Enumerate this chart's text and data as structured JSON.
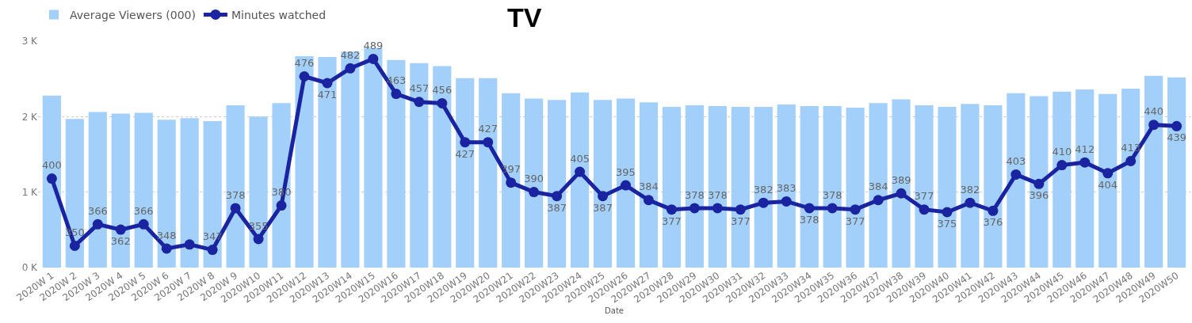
{
  "chart_data": {
    "type": "bar",
    "title": "TV",
    "xlabel": "Date",
    "categories": [
      "2020W 1",
      "2020W 2",
      "2020W 3",
      "2020W 4",
      "2020W 5",
      "2020W 6",
      "2020W 7",
      "2020W 8",
      "2020W 9",
      "2020W10",
      "2020W11",
      "2020W12",
      "2020W13",
      "2020W14",
      "2020W15",
      "2020W16",
      "2020W17",
      "2020W18",
      "2020W19",
      "2020W20",
      "2020W21",
      "2020W22",
      "2020W23",
      "2020W24",
      "2020W25",
      "2020W26",
      "2020W27",
      "2020W28",
      "2020W29",
      "2020W30",
      "2020W31",
      "2020W32",
      "2020W33",
      "2020W34",
      "2020W35",
      "2020W36",
      "2020W37",
      "2020W38",
      "2020W39",
      "2020W40",
      "2020W41",
      "2020W42",
      "2020W43",
      "2020W44",
      "2020W45",
      "2020W46",
      "2020W47",
      "2020W48",
      "2020W49",
      "2020W50"
    ],
    "series": [
      {
        "name": "Average Viewers (000)",
        "color": "#a3d0fb",
        "values": [
          2.28,
          1.97,
          2.06,
          2.04,
          2.05,
          1.96,
          1.98,
          1.94,
          2.15,
          2.0,
          2.18,
          2.8,
          2.79,
          2.86,
          2.91,
          2.75,
          2.71,
          2.67,
          2.51,
          2.51,
          2.31,
          2.24,
          2.22,
          2.32,
          2.22,
          2.24,
          2.19,
          2.13,
          2.15,
          2.14,
          2.13,
          2.13,
          2.16,
          2.14,
          2.14,
          2.12,
          2.18,
          2.23,
          2.15,
          2.13,
          2.17,
          2.15,
          2.31,
          2.27,
          2.33,
          2.36,
          2.3,
          2.37,
          2.54,
          2.52
        ]
      },
      {
        "name": "Minutes watched",
        "type": "line",
        "axis": "y2",
        "color": "#1a23a0",
        "marker": "circle",
        "values": [
          400,
          350,
          366,
          362,
          366,
          348,
          351,
          347,
          378,
          355,
          380,
          476,
          471,
          482,
          489,
          463,
          457,
          456,
          427,
          427,
          397,
          390,
          387,
          405,
          387,
          395,
          384,
          377,
          378,
          378,
          377,
          382,
          383,
          378,
          378,
          377,
          384,
          389,
          377,
          375,
          382,
          376,
          403,
          396,
          410,
          412,
          404,
          413,
          440,
          439
        ],
        "value_labels": [
          "400",
          "350",
          "366",
          "362",
          "366",
          "348",
          null,
          "347",
          "378",
          "355",
          "380",
          "476",
          "471",
          "482",
          "489",
          "463",
          "457",
          "456",
          "427",
          "427",
          "397",
          "390",
          "387",
          "405",
          "387",
          "395",
          "384",
          "377",
          "378",
          "378",
          "377",
          "382",
          "383",
          "378",
          "378",
          "377",
          "384",
          "389",
          "377",
          "375",
          "382",
          "376",
          "403",
          "396",
          "410",
          "412",
          "404",
          "413",
          "440",
          "439"
        ]
      }
    ],
    "ylim": [
      0,
      3
    ],
    "yticks": [
      {
        "value": 0,
        "label": "0 K"
      },
      {
        "value": 1,
        "label": "1 K"
      },
      {
        "value": 2,
        "label": "2 K"
      },
      {
        "value": 3,
        "label": "3 K"
      }
    ],
    "grid": "y",
    "legend": "top left"
  }
}
